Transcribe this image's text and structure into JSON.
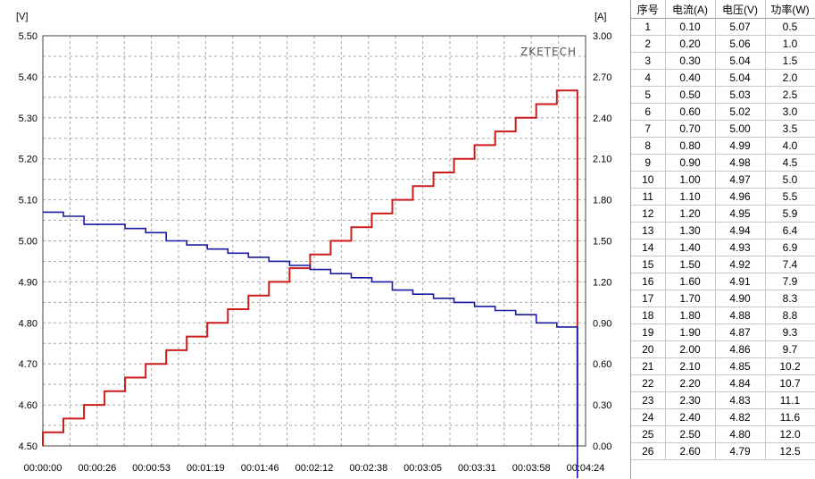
{
  "chart_data": {
    "type": "line",
    "left_axis_unit": "[V]",
    "right_axis_unit": "[A]",
    "y_left_ticks": [
      "5.50",
      "5.40",
      "5.30",
      "5.20",
      "5.10",
      "5.00",
      "4.90",
      "4.80",
      "4.70",
      "4.60",
      "4.50"
    ],
    "y_right_ticks": [
      "3.00",
      "2.70",
      "2.40",
      "2.10",
      "1.80",
      "1.50",
      "1.20",
      "0.90",
      "0.60",
      "0.30",
      "0.00"
    ],
    "x_ticks": [
      "00:00:00",
      "00:00:26",
      "00:00:53",
      "00:01:19",
      "00:01:46",
      "00:02:12",
      "00:02:38",
      "00:03:05",
      "00:03:31",
      "00:03:58",
      "00:04:24"
    ],
    "y_left_range": [
      4.5,
      5.5
    ],
    "y_right_range": [
      0,
      3.0
    ],
    "x_range_seconds": [
      0,
      264
    ],
    "grid": true,
    "watermark": "ZKETECH",
    "colors": {
      "voltage": "#1a1aa0",
      "current": "#cc1c1c",
      "grid": "#a8a8a8"
    },
    "series": [
      {
        "axis": "left",
        "step_duration_seconds": 10,
        "values": [
          5.07,
          5.06,
          5.04,
          5.04,
          5.03,
          5.02,
          5.0,
          4.99,
          4.98,
          4.97,
          4.96,
          4.95,
          4.94,
          4.93,
          4.92,
          4.91,
          4.9,
          4.88,
          4.87,
          4.86,
          4.85,
          4.84,
          4.83,
          4.82,
          4.8,
          4.79
        ]
      },
      {
        "axis": "right",
        "step_duration_seconds": 10,
        "values": [
          0.1,
          0.2,
          0.3,
          0.4,
          0.5,
          0.6,
          0.7,
          0.8,
          0.9,
          1.0,
          1.1,
          1.2,
          1.3,
          1.4,
          1.5,
          1.6,
          1.7,
          1.8,
          1.9,
          2.0,
          2.1,
          2.2,
          2.3,
          2.4,
          2.5,
          2.6
        ]
      }
    ]
  },
  "table": {
    "headers": [
      "序号",
      "电流(A)",
      "电压(V)",
      "功率(W)"
    ],
    "rows": [
      [
        "1",
        "0.10",
        "5.07",
        "0.5"
      ],
      [
        "2",
        "0.20",
        "5.06",
        "1.0"
      ],
      [
        "3",
        "0.30",
        "5.04",
        "1.5"
      ],
      [
        "4",
        "0.40",
        "5.04",
        "2.0"
      ],
      [
        "5",
        "0.50",
        "5.03",
        "2.5"
      ],
      [
        "6",
        "0.60",
        "5.02",
        "3.0"
      ],
      [
        "7",
        "0.70",
        "5.00",
        "3.5"
      ],
      [
        "8",
        "0.80",
        "4.99",
        "4.0"
      ],
      [
        "9",
        "0.90",
        "4.98",
        "4.5"
      ],
      [
        "10",
        "1.00",
        "4.97",
        "5.0"
      ],
      [
        "11",
        "1.10",
        "4.96",
        "5.5"
      ],
      [
        "12",
        "1.20",
        "4.95",
        "5.9"
      ],
      [
        "13",
        "1.30",
        "4.94",
        "6.4"
      ],
      [
        "14",
        "1.40",
        "4.93",
        "6.9"
      ],
      [
        "15",
        "1.50",
        "4.92",
        "7.4"
      ],
      [
        "16",
        "1.60",
        "4.91",
        "7.9"
      ],
      [
        "17",
        "1.70",
        "4.90",
        "8.3"
      ],
      [
        "18",
        "1.80",
        "4.88",
        "8.8"
      ],
      [
        "19",
        "1.90",
        "4.87",
        "9.3"
      ],
      [
        "20",
        "2.00",
        "4.86",
        "9.7"
      ],
      [
        "21",
        "2.10",
        "4.85",
        "10.2"
      ],
      [
        "22",
        "2.20",
        "4.84",
        "10.7"
      ],
      [
        "23",
        "2.30",
        "4.83",
        "11.1"
      ],
      [
        "24",
        "2.40",
        "4.82",
        "11.6"
      ],
      [
        "25",
        "2.50",
        "4.80",
        "12.0"
      ],
      [
        "26",
        "2.60",
        "4.79",
        "12.5"
      ]
    ]
  }
}
